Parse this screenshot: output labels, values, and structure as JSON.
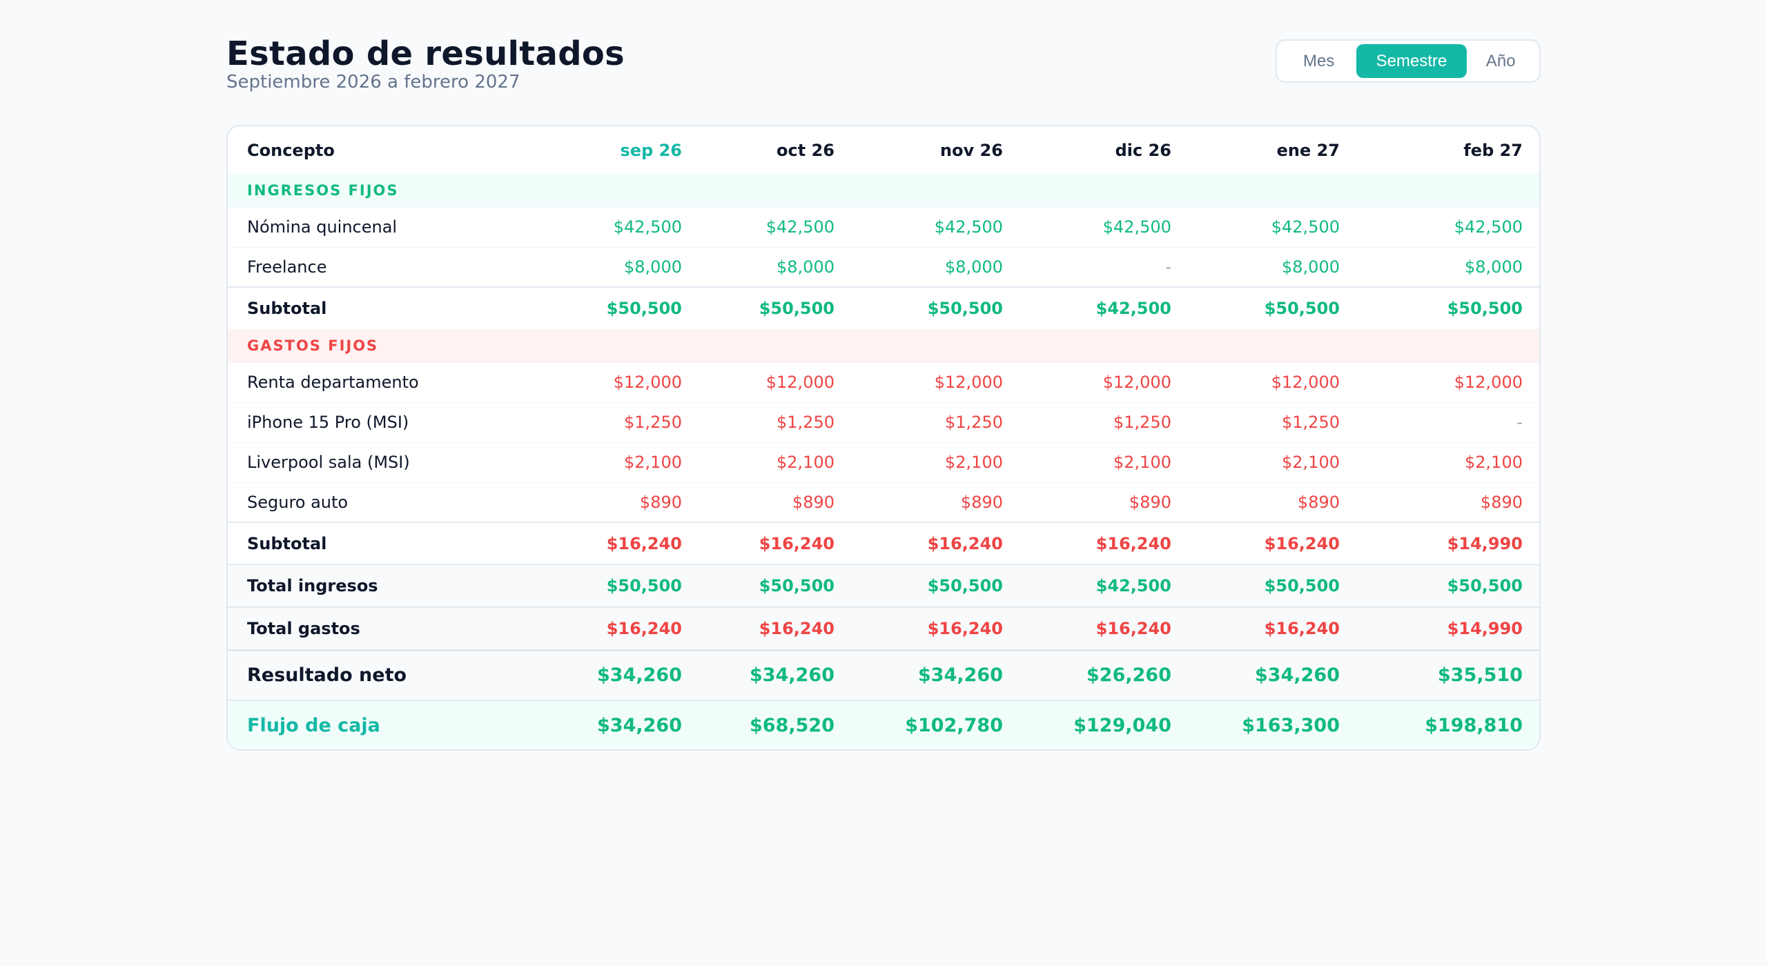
{
  "header": {
    "title": "Estado de resultados",
    "subtitle": "Septiembre 2026 a febrero 2027"
  },
  "period_toggle": {
    "options": [
      "Mes",
      "Semestre",
      "Año"
    ],
    "selected": "Semestre"
  },
  "table": {
    "concept_header": "Concepto",
    "months": [
      "sep 26",
      "oct 26",
      "nov 26",
      "dic 26",
      "ene 27",
      "feb 27"
    ],
    "current_month": "sep 26",
    "income": {
      "label": "INGRESOS FIJOS",
      "rows": [
        {
          "name": "Nómina quincenal",
          "values": [
            "$42,500",
            "$42,500",
            "$42,500",
            "$42,500",
            "$42,500",
            "$42,500"
          ]
        },
        {
          "name": "Freelance",
          "values": [
            "$8,000",
            "$8,000",
            "$8,000",
            "-",
            "$8,000",
            "$8,000"
          ]
        }
      ],
      "subtotal_label": "Subtotal",
      "subtotal": [
        "$50,500",
        "$50,500",
        "$50,500",
        "$42,500",
        "$50,500",
        "$50,500"
      ]
    },
    "expenses": {
      "label": "GASTOS FIJOS",
      "rows": [
        {
          "name": "Renta departamento",
          "values": [
            "$12,000",
            "$12,000",
            "$12,000",
            "$12,000",
            "$12,000",
            "$12,000"
          ]
        },
        {
          "name": "iPhone 15 Pro (MSI)",
          "values": [
            "$1,250",
            "$1,250",
            "$1,250",
            "$1,250",
            "$1,250",
            "-"
          ]
        },
        {
          "name": "Liverpool sala (MSI)",
          "values": [
            "$2,100",
            "$2,100",
            "$2,100",
            "$2,100",
            "$2,100",
            "$2,100"
          ]
        },
        {
          "name": "Seguro auto",
          "values": [
            "$890",
            "$890",
            "$890",
            "$890",
            "$890",
            "$890"
          ]
        }
      ],
      "subtotal_label": "Subtotal",
      "subtotal": [
        "$16,240",
        "$16,240",
        "$16,240",
        "$16,240",
        "$16,240",
        "$14,990"
      ]
    },
    "total_income": {
      "label": "Total ingresos",
      "values": [
        "$50,500",
        "$50,500",
        "$50,500",
        "$42,500",
        "$50,500",
        "$50,500"
      ]
    },
    "total_expenses": {
      "label": "Total gastos",
      "values": [
        "$16,240",
        "$16,240",
        "$16,240",
        "$16,240",
        "$16,240",
        "$14,990"
      ]
    },
    "net_result": {
      "label": "Resultado neto",
      "values": [
        "$34,260",
        "$34,260",
        "$34,260",
        "$26,260",
        "$34,260",
        "$35,510"
      ]
    },
    "cash_flow": {
      "label": "Flujo de caja",
      "values": [
        "$34,260",
        "$68,520",
        "$102,780",
        "$129,040",
        "$163,300",
        "$198,810"
      ]
    }
  },
  "colors": {
    "accent": "#14b8a6",
    "income": "#10b981",
    "expense": "#ef4444"
  }
}
